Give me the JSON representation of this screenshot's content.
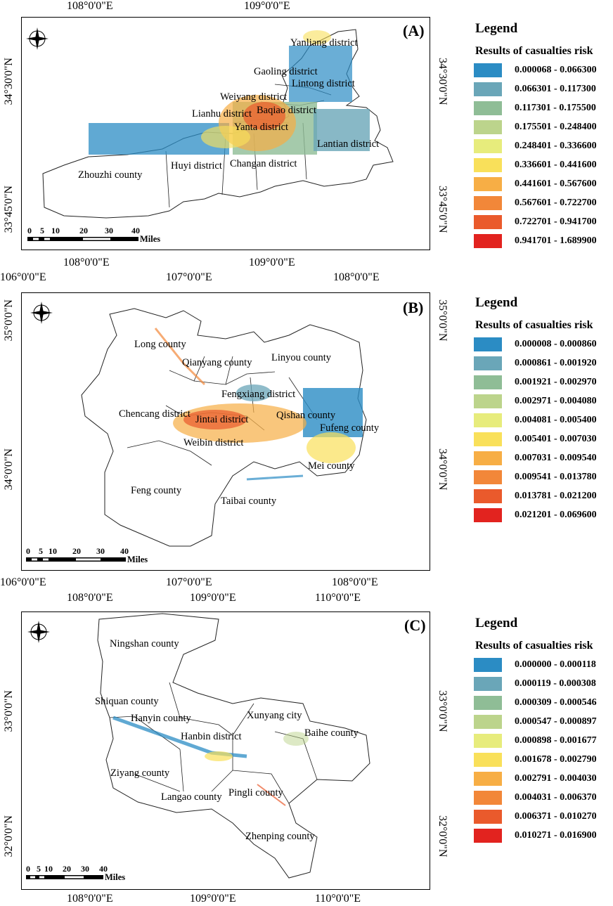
{
  "panels": [
    {
      "letter": "(A)",
      "top_coords": [
        "108°0'0\"E",
        "109°0'0\"E"
      ],
      "bottom_coords": [
        "108°0'0\"E",
        "109°0'0\"E"
      ],
      "left_coords": [
        "34°30'0\"N",
        "33°45'0\"N"
      ],
      "right_coords": [
        "34°30'0\"N",
        "33°45'0\"N"
      ],
      "places": [
        "Yanliang district",
        "Gaoling district",
        "Lintong district",
        "Weiyang district",
        "Baqiao district",
        "Lianhu district",
        "Yanta district",
        "Lantian district",
        "Zhouzhi county",
        "Huyi district",
        "Changan district"
      ],
      "scale": {
        "ticks": [
          "0",
          "5",
          "10",
          "20",
          "30",
          "40"
        ],
        "unit": "Miles"
      },
      "legend": {
        "title": "Legend",
        "subtitle": "Results of casualties risk",
        "classes": [
          "0.000068 - 0.066300",
          "0.066301 - 0.117300",
          "0.117301 - 0.175500",
          "0.175501 - 0.248400",
          "0.248401 - 0.336600",
          "0.336601 - 0.441600",
          "0.441601 - 0.567600",
          "0.567601 - 0.722700",
          "0.722701 - 0.941700",
          "0.941701 - 1.689900"
        ]
      }
    },
    {
      "letter": "(B)",
      "top_coords": [
        "106°0'0\"E",
        "107°0'0\"E",
        "108°0'0\"E"
      ],
      "bottom_coords": [
        "106°0'0\"E",
        "107°0'0\"E",
        "108°0'0\"E"
      ],
      "left_coords": [
        "35°0'0\"N",
        "34°0'0\"N"
      ],
      "right_coords": [
        "35°0'0\"N",
        "34°0'0\"N"
      ],
      "places": [
        "Long county",
        "Qianyang county",
        "Linyou county",
        "Fengxiang district",
        "Chencang district",
        "Jintai district",
        "Qishan county",
        "Fufeng county",
        "Weibin district",
        "Mei county",
        "Feng county",
        "Taibai county"
      ],
      "scale": {
        "ticks": [
          "0",
          "5",
          "10",
          "20",
          "30",
          "40"
        ],
        "unit": "Miles"
      },
      "legend": {
        "title": "Legend",
        "subtitle": "Results of casualties risk",
        "classes": [
          "0.000008 - 0.000860",
          "0.000861 - 0.001920",
          "0.001921 - 0.002970",
          "0.002971 - 0.004080",
          "0.004081 - 0.005400",
          "0.005401 - 0.007030",
          "0.007031 - 0.009540",
          "0.009541 - 0.013780",
          "0.013781 - 0.021200",
          "0.021201 - 0.069600"
        ]
      }
    },
    {
      "letter": "(C)",
      "top_coords": [
        "108°0'0\"E",
        "109°0'0\"E",
        "110°0'0\"E"
      ],
      "bottom_coords": [
        "108°0'0\"E",
        "109°0'0\"E",
        "110°0'0\"E"
      ],
      "left_coords": [
        "33°0'0\"N",
        "32°0'0\"N"
      ],
      "right_coords": [
        "33°0'0\"N",
        "32°0'0\"N"
      ],
      "places": [
        "Ningshan county",
        "Shiquan county",
        "Hanyin county",
        "Xunyang city",
        "Hanbin district",
        "Baihe county",
        "Ziyang county",
        "Pingli county",
        "Langao county",
        "Zhenping county"
      ],
      "scale": {
        "ticks": [
          "0",
          "5",
          "10",
          "20",
          "30",
          "40"
        ],
        "unit": "Miles"
      },
      "legend": {
        "title": "Legend",
        "subtitle": "Results of casualties risk",
        "classes": [
          "0.000000 - 0.000118",
          "0.000119 - 0.000308",
          "0.000309 - 0.000546",
          "0.000547 - 0.000897",
          "0.000898 - 0.001677",
          "0.001678 - 0.002790",
          "0.002791 - 0.004030",
          "0.004031 - 0.006370",
          "0.006371 - 0.010270",
          "0.010271 - 0.016900"
        ]
      }
    }
  ],
  "colors": [
    "#2b8cc4",
    "#6aa6b8",
    "#8fbd96",
    "#bcd48c",
    "#e7ec7c",
    "#f9e05a",
    "#f7ae45",
    "#f28739",
    "#ea5a2c",
    "#e2231f"
  ],
  "north_arrow": {
    "n": "N",
    "s": "S",
    "e": "E",
    "w": "W"
  }
}
